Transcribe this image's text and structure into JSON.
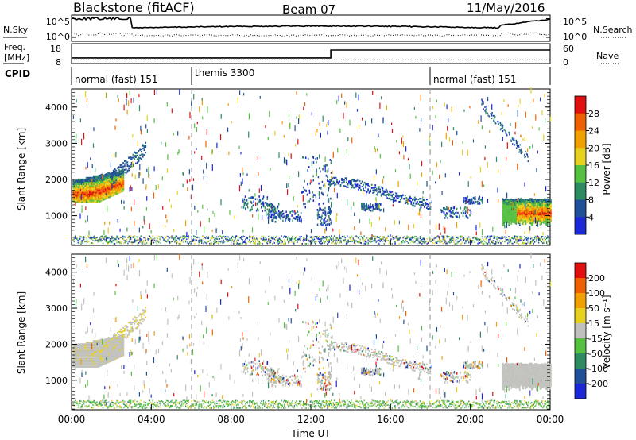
{
  "header": {
    "title": "Blackstone (fitACF)",
    "beam": "Beam 07",
    "date": "11/May/2016"
  },
  "colors": {
    "ground_scatter": "#c0c0bc",
    "power_scale": [
      "#1a28d8",
      "#20509a",
      "#2e8a60",
      "#56c040",
      "#e8d020",
      "#f0a000",
      "#f06000",
      "#e01010"
    ],
    "velocity_scale": [
      "#1a28d8",
      "#20509a",
      "#2e8a60",
      "#56c040",
      "#c0c0bc",
      "#e8d020",
      "#f0a000",
      "#f06000",
      "#e01010"
    ]
  },
  "chart_data": [
    {
      "panel": "noise",
      "type": "line",
      "left_label": "N.Sky",
      "right_label": "N.Search",
      "left_ticks": [
        "10^5",
        "10^0"
      ],
      "right_ticks": [
        "10^5",
        "10^0"
      ],
      "x_range_hours": [
        0,
        24
      ]
    },
    {
      "panel": "frequency",
      "type": "line",
      "left_label_line1": "Freq.",
      "left_label_line2": "[MHz]",
      "right_label": "Nave",
      "left_ticks": [
        "18",
        "8"
      ],
      "right_ticks": [
        "60",
        "0"
      ],
      "ylim_freq": [
        8,
        18
      ],
      "ylim_nave": [
        0,
        60
      ],
      "freq_steps": [
        {
          "from": 0,
          "to": 13.0,
          "value": 10.0
        },
        {
          "from": 13.0,
          "to": 24,
          "value": 15.5
        }
      ],
      "nave_value": 13
    },
    {
      "panel": "cpid",
      "label": "CPID",
      "segments": [
        {
          "start": 0,
          "end": 6,
          "text": "normal (fast) 151"
        },
        {
          "start": 6,
          "end": 18,
          "text": "themis 3300"
        },
        {
          "start": 18,
          "end": 24,
          "text": "normal (fast) 151"
        }
      ]
    },
    {
      "panel": "power",
      "type": "heatmap",
      "ylabel": "Slant Range [km]",
      "yticks": [
        "1000",
        "2000",
        "3000",
        "4000"
      ],
      "ylim": [
        180,
        4500
      ],
      "x_range_hours": [
        0,
        24
      ],
      "colorbar_label": "Power [dB]",
      "colorbar_ticks": [
        "4",
        "8",
        "12",
        "16",
        "20",
        "24",
        "28"
      ],
      "color_range": [
        0,
        32
      ]
    },
    {
      "panel": "velocity",
      "type": "heatmap",
      "ylabel": "Slant Range [km]",
      "yticks": [
        "1000",
        "2000",
        "3000",
        "4000"
      ],
      "ylim": [
        180,
        4500
      ],
      "xlabel": "Time UT",
      "xticks": [
        "00:00",
        "04:00",
        "08:00",
        "12:00",
        "16:00",
        "20:00",
        "00:00"
      ],
      "x_range_hours": [
        0,
        24
      ],
      "colorbar_label": "Velocity [m s⁻¹]",
      "colorbar_ticks": [
        "200",
        "100",
        "50",
        "15",
        "-15",
        "-50",
        "-100",
        "-200"
      ]
    }
  ]
}
